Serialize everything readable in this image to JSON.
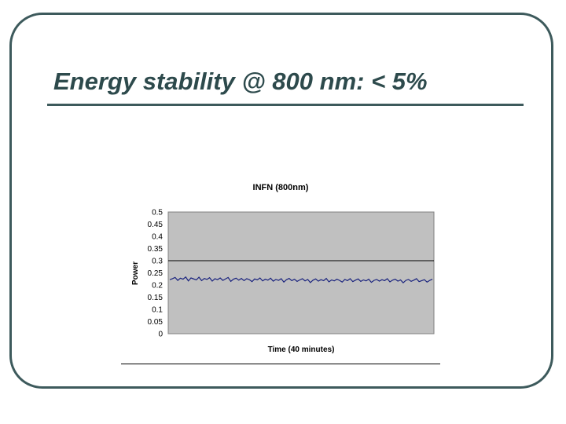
{
  "slide": {
    "title": "Energy stability @ 800 nm: < 5%"
  },
  "colors": {
    "frame": "#3d5a5c",
    "title": "#2d4a4c",
    "plot_background": "#c0c0c0",
    "series_line": "#1a237e",
    "gridline": "#000000"
  },
  "chart_data": {
    "type": "line",
    "title": "INFN (800nm)",
    "xlabel": "Time (40 minutes)",
    "ylabel": "Power",
    "ylim": [
      0,
      0.5
    ],
    "yticks": [
      "0",
      "0.05",
      "0.1",
      "0.15",
      "0.2",
      "0.25",
      "0.3",
      "0.35",
      "0.4",
      "0.45",
      "0.5"
    ],
    "y_gridlines": [
      0.3
    ],
    "grid": false,
    "legend": "none",
    "xlim": [
      0,
      40
    ],
    "series": [
      {
        "values": [
          0.222,
          0.226,
          0.231,
          0.219,
          0.228,
          0.224,
          0.233,
          0.217,
          0.229,
          0.225,
          0.221,
          0.232,
          0.218,
          0.227,
          0.223,
          0.23,
          0.216,
          0.226,
          0.222,
          0.229,
          0.219,
          0.225,
          0.231,
          0.215,
          0.224,
          0.228,
          0.22,
          0.227,
          0.218,
          0.226,
          0.222,
          0.214,
          0.225,
          0.221,
          0.229,
          0.217,
          0.224,
          0.22,
          0.228,
          0.216,
          0.223,
          0.219,
          0.226,
          0.212,
          0.222,
          0.227,
          0.218,
          0.224,
          0.215,
          0.221,
          0.226,
          0.217,
          0.223,
          0.21,
          0.22,
          0.225,
          0.216,
          0.222,
          0.218,
          0.227,
          0.213,
          0.221,
          0.217,
          0.224,
          0.219,
          0.212,
          0.223,
          0.218,
          0.226,
          0.214,
          0.22,
          0.225,
          0.215,
          0.221,
          0.217,
          0.224,
          0.211,
          0.219,
          0.223,
          0.216,
          0.222,
          0.218,
          0.226,
          0.213,
          0.22,
          0.224,
          0.216,
          0.221,
          0.209,
          0.219,
          0.223,
          0.215,
          0.22,
          0.226,
          0.214,
          0.218,
          0.222,
          0.212,
          0.219,
          0.224
        ]
      }
    ]
  }
}
